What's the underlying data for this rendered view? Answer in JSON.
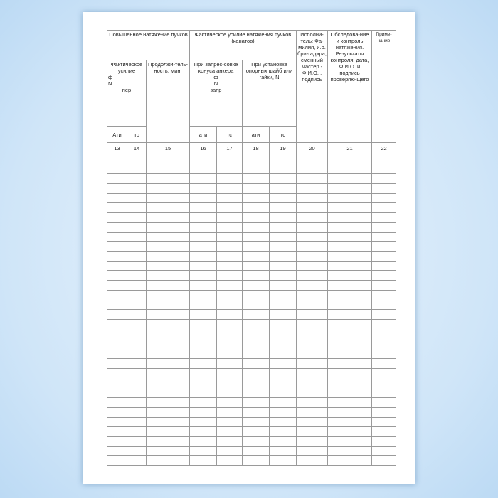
{
  "header": {
    "group1": "Повышенное натяжение пучков",
    "group2": "Фактическое усилие натяжения пучков (канатов)",
    "col_actual_force": "Фактическое усилие",
    "col_actual_force_sym": "ф",
    "col_actual_force_N": "N",
    "col_actual_force_sub": "пер",
    "col_duration": "Продолжи-тель-ность, мин.",
    "col_press": "При запрес-совке конуса анкера",
    "col_press_sym": "ф",
    "col_press_N": "N",
    "col_press_sub": "запр",
    "col_install": "При установке опорных шайб или гайки, N",
    "col_executor": "Исполни-тель: Фа-милия, и.о. бри-гадира; сменный мастер - Ф.И.О. , подпись",
    "col_inspection": "Обследова-ние и контроль натяжения. Результаты контроля: дата, Ф.И.О. и подпись проверяю-щего",
    "col_note": "Приме-чание",
    "unit_13": "Ати",
    "unit_14": "тс",
    "unit_16": "ати",
    "unit_17": "тс",
    "unit_18": "ати",
    "unit_19": "тс"
  },
  "column_numbers": [
    "13",
    "14",
    "15",
    "16",
    "17",
    "18",
    "19",
    "20",
    "21",
    "22"
  ],
  "empty_rows": 32
}
